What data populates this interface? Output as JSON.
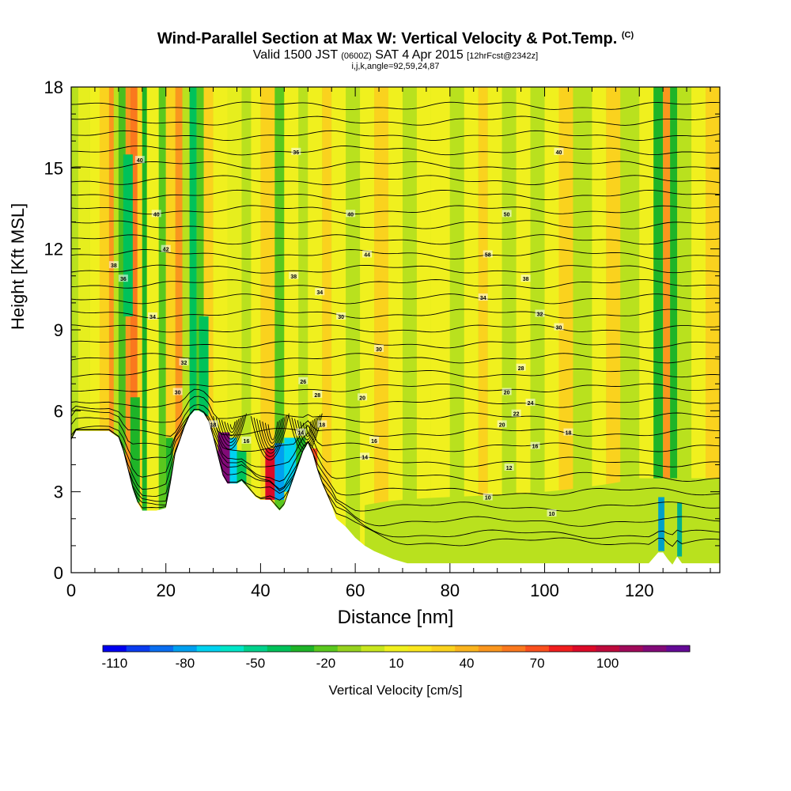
{
  "title": {
    "main": "Wind-Parallel Section at Max W: Vertical Velocity & Pot.Temp.",
    "main_tag": "(C)",
    "valid_pre": "Valid 1500 JST",
    "valid_utc": "(0600Z)",
    "valid_date": "SAT 4 Apr 2015",
    "valid_fcst": "[12hrFcst@2342z]",
    "params": "i,j,k,angle=92,59,24,87"
  },
  "chart_data": {
    "type": "heatmap",
    "xlabel": "Distance [nm]",
    "ylabel": "Height [Kft MSL]",
    "xlim": [
      0,
      137
    ],
    "ylim": [
      0,
      18
    ],
    "x_ticks": [
      0,
      20,
      40,
      60,
      80,
      100,
      120
    ],
    "y_ticks": [
      0,
      3,
      6,
      9,
      12,
      15,
      18
    ],
    "colorbar": {
      "label": "Vertical Velocity [cm/s]",
      "tick_labels": [
        "-110",
        "-80",
        "-50",
        "-20",
        "10",
        "40",
        "70",
        "100"
      ],
      "colors": [
        "#0000f0",
        "#0a3cf0",
        "#0a6ef0",
        "#00a0f0",
        "#00d2f0",
        "#00e6c8",
        "#00d28c",
        "#00c25a",
        "#1eb428",
        "#5ac81e",
        "#96d21e",
        "#c8e61e",
        "#f0f01e",
        "#fae61e",
        "#fad21e",
        "#fab41e",
        "#fa961e",
        "#fa781e",
        "#fa501e",
        "#f01e1e",
        "#dc0a28",
        "#be0a3c",
        "#a00a5a",
        "#820a78",
        "#640a96"
      ]
    },
    "terrain_kft": [
      [
        0,
        4.9
      ],
      [
        1,
        5.25
      ],
      [
        5,
        5.25
      ],
      [
        8,
        5.25
      ],
      [
        10,
        5.0
      ],
      [
        11,
        4.5
      ],
      [
        12,
        3.8
      ],
      [
        13,
        3.1
      ],
      [
        14,
        2.6
      ],
      [
        15,
        2.3
      ],
      [
        16,
        2.3
      ],
      [
        18,
        2.3
      ],
      [
        20,
        2.4
      ],
      [
        21,
        3.3
      ],
      [
        22,
        4.4
      ],
      [
        23,
        4.9
      ],
      [
        24,
        5.4
      ],
      [
        25,
        5.8
      ],
      [
        26,
        6.0
      ],
      [
        27,
        6.0
      ],
      [
        28,
        5.9
      ],
      [
        29,
        5.6
      ],
      [
        30,
        5.0
      ],
      [
        31,
        4.3
      ],
      [
        32,
        3.6
      ],
      [
        33,
        3.3
      ],
      [
        35,
        3.3
      ],
      [
        36,
        3.4
      ],
      [
        37,
        3.2
      ],
      [
        38,
        3.0
      ],
      [
        39,
        2.8
      ],
      [
        40,
        2.7
      ],
      [
        41,
        2.7
      ],
      [
        42,
        2.7
      ],
      [
        43,
        2.5
      ],
      [
        44,
        2.3
      ],
      [
        45,
        2.5
      ],
      [
        46,
        3.0
      ],
      [
        47,
        3.5
      ],
      [
        48,
        4.0
      ],
      [
        49,
        4.5
      ],
      [
        50,
        4.8
      ],
      [
        51,
        4.4
      ],
      [
        52,
        3.8
      ],
      [
        53,
        3.3
      ],
      [
        54,
        2.9
      ],
      [
        55,
        2.5
      ],
      [
        56,
        2.0
      ],
      [
        58,
        1.7
      ],
      [
        60,
        1.3
      ],
      [
        62,
        1.0
      ],
      [
        64,
        0.8
      ],
      [
        66,
        0.65
      ],
      [
        68,
        0.5
      ],
      [
        71,
        0.35
      ],
      [
        80,
        0.35
      ],
      [
        90,
        0.35
      ],
      [
        100,
        0.35
      ],
      [
        110,
        0.35
      ],
      [
        120,
        0.35
      ],
      [
        122,
        0.35
      ],
      [
        123,
        0.55
      ],
      [
        124,
        0.75
      ],
      [
        125,
        0.75
      ],
      [
        126,
        0.5
      ],
      [
        127,
        0.3
      ],
      [
        128,
        0.6
      ],
      [
        129,
        0.35
      ],
      [
        137,
        0.35
      ]
    ],
    "contour_labels": [
      {
        "text": "40",
        "x": 14.5,
        "y": 15.3
      },
      {
        "text": "40",
        "x": 18,
        "y": 13.3
      },
      {
        "text": "42",
        "x": 20,
        "y": 12.0
      },
      {
        "text": "38",
        "x": 9,
        "y": 11.4
      },
      {
        "text": "36",
        "x": 11,
        "y": 10.9
      },
      {
        "text": "34",
        "x": 17.2,
        "y": 9.5
      },
      {
        "text": "32",
        "x": 23.8,
        "y": 7.8
      },
      {
        "text": "30",
        "x": 22.5,
        "y": 6.7
      },
      {
        "text": "18",
        "x": 30,
        "y": 5.5
      },
      {
        "text": "16",
        "x": 37,
        "y": 4.9
      },
      {
        "text": "14",
        "x": 48.5,
        "y": 5.2
      },
      {
        "text": "18",
        "x": 53,
        "y": 5.5
      },
      {
        "text": "28",
        "x": 52,
        "y": 6.6
      },
      {
        "text": "26",
        "x": 49,
        "y": 7.1
      },
      {
        "text": "20",
        "x": 61.5,
        "y": 6.5
      },
      {
        "text": "36",
        "x": 47.5,
        "y": 15.6
      },
      {
        "text": "40",
        "x": 59,
        "y": 13.3
      },
      {
        "text": "44",
        "x": 62.5,
        "y": 11.8
      },
      {
        "text": "38",
        "x": 47,
        "y": 11.0
      },
      {
        "text": "34",
        "x": 52.5,
        "y": 10.4
      },
      {
        "text": "30",
        "x": 57,
        "y": 9.5
      },
      {
        "text": "30",
        "x": 65,
        "y": 8.3
      },
      {
        "text": "16",
        "x": 64,
        "y": 4.9
      },
      {
        "text": "14",
        "x": 62,
        "y": 4.3
      },
      {
        "text": "12",
        "x": 92.5,
        "y": 3.9
      },
      {
        "text": "10",
        "x": 88,
        "y": 2.8
      },
      {
        "text": "10",
        "x": 101.5,
        "y": 2.2
      },
      {
        "text": "40",
        "x": 103,
        "y": 15.6
      },
      {
        "text": "50",
        "x": 92,
        "y": 13.3
      },
      {
        "text": "58",
        "x": 88,
        "y": 11.8
      },
      {
        "text": "38",
        "x": 96,
        "y": 10.9
      },
      {
        "text": "34",
        "x": 87,
        "y": 10.2
      },
      {
        "text": "32",
        "x": 99,
        "y": 9.6
      },
      {
        "text": "30",
        "x": 103,
        "y": 9.1
      },
      {
        "text": "28",
        "x": 95,
        "y": 7.6
      },
      {
        "text": "20",
        "x": 92,
        "y": 6.7
      },
      {
        "text": "24",
        "x": 97,
        "y": 6.3
      },
      {
        "text": "22",
        "x": 94,
        "y": 5.9
      },
      {
        "text": "20",
        "x": 91,
        "y": 5.5
      },
      {
        "text": "18",
        "x": 105,
        "y": 5.2
      },
      {
        "text": "16",
        "x": 98,
        "y": 4.7
      }
    ]
  }
}
